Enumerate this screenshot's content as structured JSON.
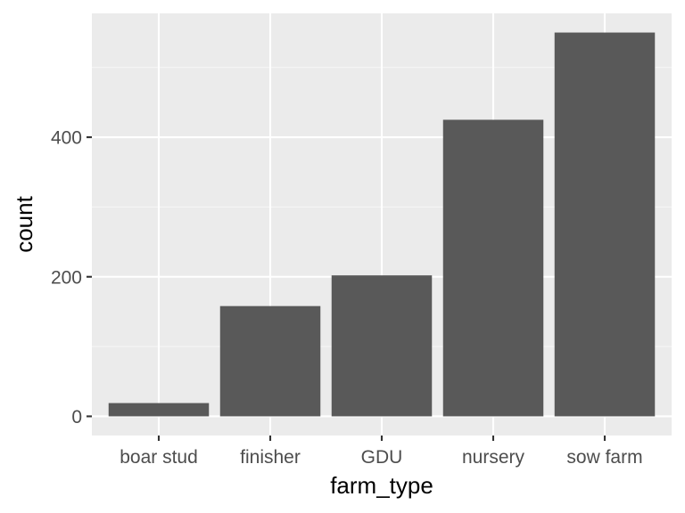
{
  "chart_data": {
    "type": "bar",
    "title": "",
    "xlabel": "farm_type",
    "ylabel": "count",
    "categories": [
      "boar stud",
      "finisher",
      "GDU",
      "nursery",
      "sow farm"
    ],
    "values": [
      19,
      158,
      202,
      425,
      550
    ],
    "ylim": [
      -27.5,
      577.5
    ],
    "yticks": [
      0,
      200,
      400
    ],
    "ytick_labels": [
      "0",
      "200",
      "400"
    ],
    "grid": true,
    "legend": "none",
    "colors": {
      "panel": "#ebebeb",
      "grid_major": "#ffffff",
      "grid_minor": "#f5f5f5",
      "bar": "#595959",
      "tick": "#333333"
    }
  }
}
